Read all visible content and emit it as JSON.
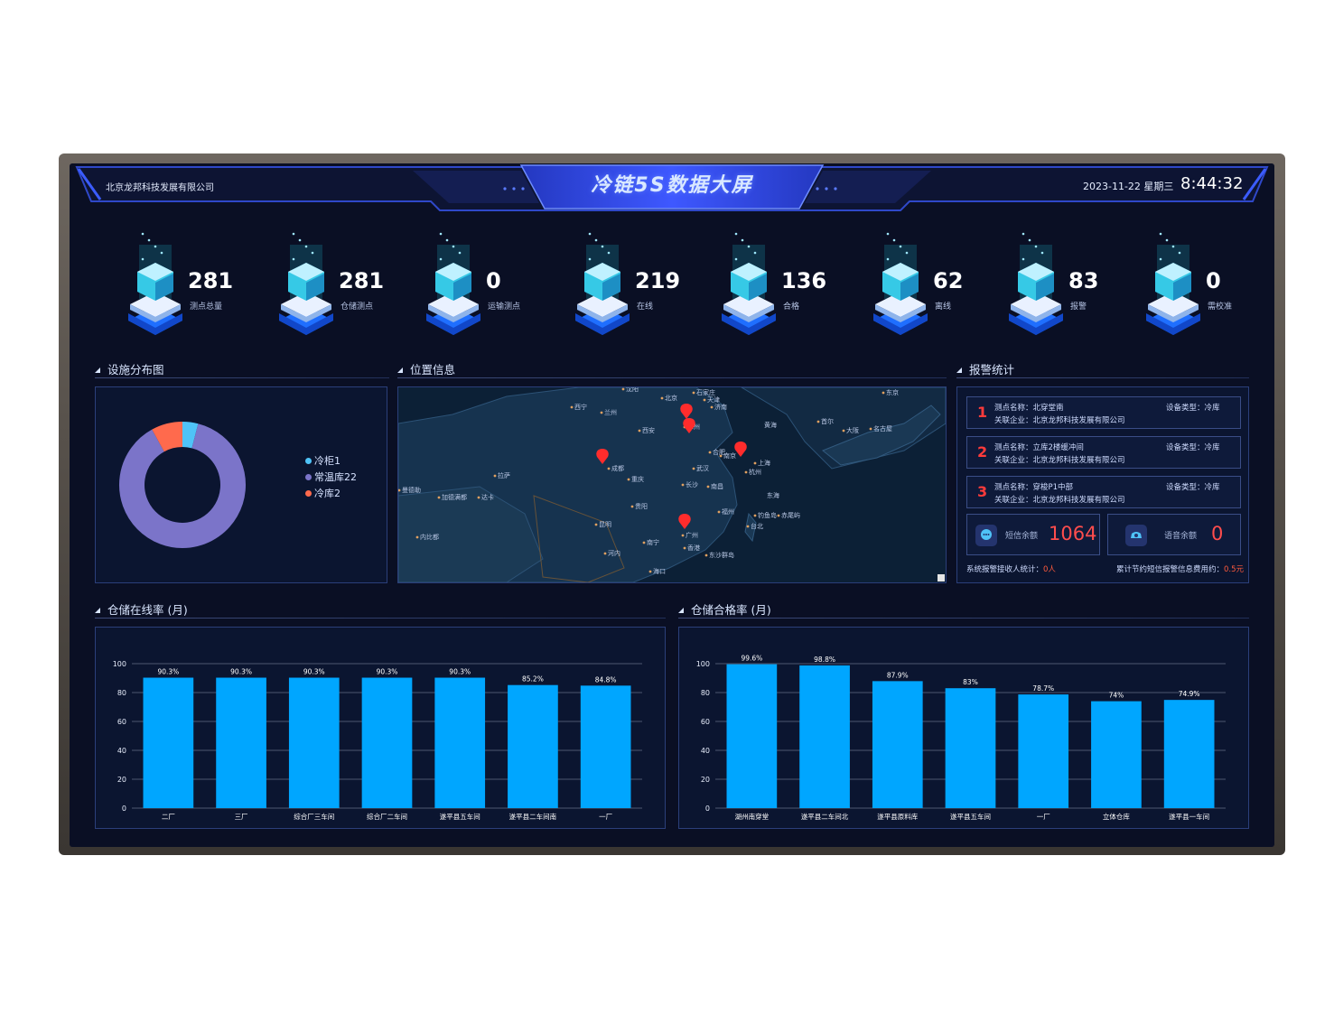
{
  "header": {
    "company": "北京龙邦科技发展有限公司",
    "title": "冷链5S数据大屏",
    "date": "2023-11-22 星期三",
    "time": "8:44:32"
  },
  "stats": [
    {
      "value": "281",
      "label": "测点总量",
      "icon": "data-cubes-icon"
    },
    {
      "value": "281",
      "label": "仓储测点",
      "icon": "warehouse-icon"
    },
    {
      "value": "0",
      "label": "运输测点",
      "icon": "truck-icon"
    },
    {
      "value": "219",
      "label": "在线",
      "icon": "cloud-icon"
    },
    {
      "value": "136",
      "label": "合格",
      "icon": "goggles-icon"
    },
    {
      "value": "62",
      "label": "离线",
      "icon": "offline-icon"
    },
    {
      "value": "83",
      "label": "报警",
      "icon": "shield-icon"
    },
    {
      "value": "0",
      "label": "需校准",
      "icon": "wrench-icon"
    }
  ],
  "sections": {
    "facility": "设施分布图",
    "location": "位置信息",
    "alarm": "报警统计",
    "online": "仓储在线率 (月)",
    "qualified": "仓储合格率 (月)"
  },
  "donut": {
    "legend": [
      {
        "name": "冷柜1",
        "color": "#4fc3f7"
      },
      {
        "name": "常温库22",
        "color": "#7b74c9"
      },
      {
        "name": "冷库2",
        "color": "#ff6a4d"
      }
    ],
    "values": [
      1,
      22,
      2
    ]
  },
  "map": {
    "labels": [
      "沈阳",
      "石家庄",
      "北京",
      "天津",
      "济南",
      "郑州",
      "西宁",
      "兰州",
      "西安",
      "合肥",
      "南京",
      "上海",
      "杭州",
      "武汉",
      "成都",
      "重庆",
      "长沙",
      "南昌",
      "福州",
      "台北",
      "贵阳",
      "昆明",
      "南宁",
      "广州",
      "香港",
      "海口",
      "拉萨",
      "黄海",
      "东海",
      "首尔",
      "大阪",
      "东京",
      "名古屋",
      "钓鱼岛",
      "赤尾屿",
      "东沙群岛",
      "加德满都",
      "达卡",
      "曼德勒",
      "内比都",
      "河内"
    ],
    "sea_labels": [
      "黄海",
      "东海"
    ]
  },
  "alarms": [
    {
      "num": "1",
      "name": "测点名称：北穿堂南",
      "company": "关联企业：北京龙邦科技发展有限公司",
      "type": "设备类型：冷库"
    },
    {
      "num": "2",
      "name": "测点名称：立库2楼缓冲间",
      "company": "关联企业：北京龙邦科技发展有限公司",
      "type": "设备类型：冷库"
    },
    {
      "num": "3",
      "name": "测点名称：穿梭P1中部",
      "company": "关联企业：北京龙邦科技发展有限公司",
      "type": "设备类型：冷库"
    }
  ],
  "balances": {
    "sms_label": "短信余额",
    "sms_value": "1064",
    "voice_label": "语音余额",
    "voice_value": "0"
  },
  "footer": {
    "receivers_label": "系统报警接收人统计：",
    "receivers_value": "0人",
    "saved_label": "累计节约短信报警信息费用约：",
    "saved_value": "0.5元"
  },
  "chart_data": [
    {
      "type": "bar",
      "title": "仓储在线率 (月)",
      "categories": [
        "二厂",
        "三厂",
        "综合厂三车间",
        "综合厂二车间",
        "遂平县五车间",
        "遂平县二车间南",
        "一厂"
      ],
      "values": [
        90.3,
        90.3,
        90.3,
        90.3,
        90.3,
        85.2,
        84.8
      ],
      "data_labels": [
        "90.3%",
        "90.3%",
        "90.3%",
        "90.3%",
        "90.3%",
        "85.2%",
        "84.8%"
      ],
      "yticks": [
        "0",
        "20",
        "40",
        "60",
        "80",
        "100"
      ],
      "ylim": [
        0,
        100
      ],
      "color": "#00a6ff"
    },
    {
      "type": "bar",
      "title": "仓储合格率 (月)",
      "categories": [
        "湖州南穿堂",
        "遂平县二车间北",
        "遂平县原料库",
        "遂平县五车间",
        "一厂",
        "立体仓库",
        "遂平县一车间"
      ],
      "values": [
        99.6,
        98.8,
        87.9,
        83,
        78.7,
        74,
        74.9
      ],
      "data_labels": [
        "99.6%",
        "98.8%",
        "87.9%",
        "83%",
        "78.7%",
        "74%",
        "74.9%"
      ],
      "yticks": [
        "0",
        "20",
        "40",
        "60",
        "80",
        "100"
      ],
      "ylim": [
        0,
        100
      ],
      "color": "#00a6ff"
    }
  ]
}
